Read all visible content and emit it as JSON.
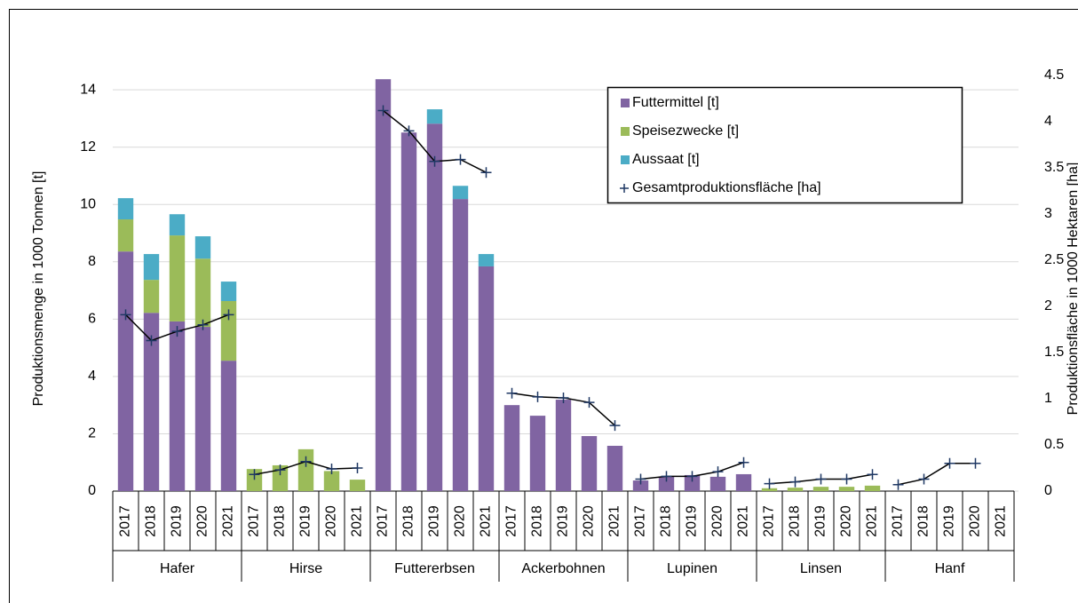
{
  "chart_data": {
    "type": "bar",
    "stacked": true,
    "ylabel": "Produktionsmenge in 1000 Tonnen [t]",
    "y2label": "Produktionsfläche in 1000 Hektaren [ha]",
    "groups": [
      {
        "name": "Hafer",
        "categories": [
          "2017",
          "2018",
          "2019",
          "2020",
          "2021"
        ]
      },
      {
        "name": "Hirse",
        "categories": [
          "2017",
          "2018",
          "2019",
          "2020",
          "2021"
        ]
      },
      {
        "name": "Futtererbsen",
        "categories": [
          "2017",
          "2018",
          "2019",
          "2020",
          "2021"
        ]
      },
      {
        "name": "Ackerbohnen",
        "categories": [
          "2017",
          "2018",
          "2019",
          "2020",
          "2021"
        ]
      },
      {
        "name": "Lupinen",
        "categories": [
          "2017",
          "2018",
          "2019",
          "2020",
          "2021"
        ]
      },
      {
        "name": "Linsen",
        "categories": [
          "2017",
          "2018",
          "2019",
          "2020",
          "2021"
        ]
      },
      {
        "name": "Hanf",
        "categories": [
          "2017",
          "2018",
          "2019",
          "2020",
          "2021"
        ]
      }
    ],
    "series": [
      {
        "name": "Futtermittel [t]",
        "type": "bar",
        "color": "#8064a2",
        "values": [
          8.36,
          6.22,
          5.92,
          5.73,
          4.55,
          0,
          0,
          0,
          0,
          0,
          14.37,
          12.51,
          12.82,
          10.19,
          7.84,
          3.0,
          2.63,
          3.19,
          1.92,
          1.58,
          0.37,
          0.5,
          0.56,
          0.5,
          0.59,
          0,
          0,
          0,
          0,
          0,
          0,
          0,
          0,
          0,
          0
        ]
      },
      {
        "name": "Speisezwecke [t]",
        "type": "bar",
        "color": "#9bbb59",
        "values": [
          1.12,
          1.15,
          3.0,
          2.38,
          2.08,
          0.77,
          0.9,
          1.46,
          0.7,
          0.4,
          0,
          0,
          0,
          0,
          0,
          0,
          0,
          0,
          0,
          0,
          0,
          0,
          0,
          0,
          0,
          0.1,
          0.12,
          0.15,
          0.15,
          0.19,
          0,
          0,
          0,
          0,
          0
        ]
      },
      {
        "name": "Aussaat [t]",
        "type": "bar",
        "color": "#4bacc6",
        "values": [
          0.74,
          0.9,
          0.74,
          0.78,
          0.68,
          0,
          0,
          0,
          0,
          0,
          0,
          0,
          0.5,
          0.46,
          0.43,
          0,
          0,
          0,
          0,
          0,
          0,
          0,
          0,
          0,
          0,
          0,
          0,
          0,
          0,
          0,
          0,
          0,
          0,
          0,
          0
        ]
      },
      {
        "name": "Gesamtproduktionsfläche [ha]",
        "type": "line",
        "axis": "y2",
        "color": "#1f3864",
        "values": [
          1.91,
          1.63,
          1.73,
          1.8,
          1.91,
          0.18,
          0.23,
          0.32,
          0.24,
          0.25,
          4.12,
          3.9,
          3.57,
          3.59,
          3.45,
          1.06,
          1.02,
          1.01,
          0.96,
          0.71,
          0.13,
          0.16,
          0.16,
          0.21,
          0.31,
          0.08,
          0.1,
          0.13,
          0.13,
          0.18,
          0.07,
          0.13,
          0.3,
          0.3,
          null
        ]
      }
    ],
    "ylim": [
      0,
      14.5
    ],
    "yticks": [
      0,
      2,
      4,
      6,
      8,
      10,
      12,
      14
    ],
    "y2lim": [
      0,
      4.5
    ],
    "y2ticks": [
      0,
      0.5,
      1,
      1.5,
      2,
      2.5,
      3,
      3.5,
      4,
      4.5
    ],
    "grid": true,
    "legend": "upper right"
  }
}
